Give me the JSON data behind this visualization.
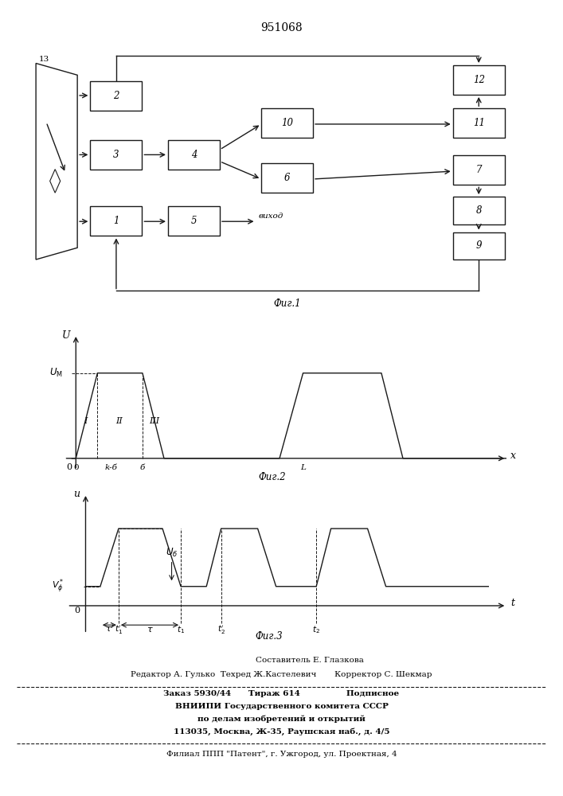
{
  "title": "951068",
  "title_fontsize": 10,
  "fig1_label": "Фиг.1",
  "fig2_label": "Фиг.2",
  "fig3_label": "Фиг.3",
  "footer_line1": "Составитель Е. Глазкова",
  "footer_line2": "Редактор А. Гулько  Техред Ж.Кастелевич       Корректор С. Шекмар",
  "footer_line3": "Заказ 5930/44      Тираж 614                Подписное",
  "footer_line4": "ВНИИПИ Государственного комитета СССР",
  "footer_line5": "по делам изобретений и открытий",
  "footer_line6": "113035, Москва, Ж-35, Раушская наб., д. 4/5",
  "footer_line7": "Филиал ППП \"Патент\", г. Ужгород, ул. Проектная, 4",
  "bg_color": "#ffffff",
  "line_color": "#1a1a1a"
}
